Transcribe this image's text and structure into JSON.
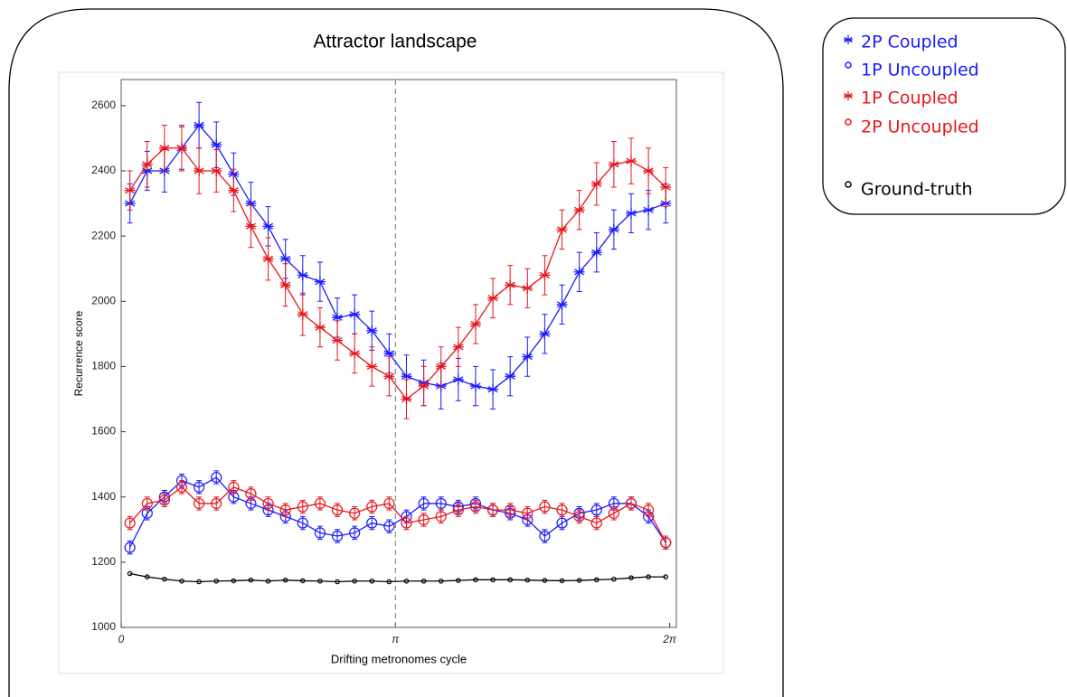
{
  "chart_data": {
    "type": "line",
    "title": "Attractor landscape",
    "xlabel": "Drifting metronomes cycle",
    "ylabel": "Recurrence score",
    "xlim": [
      0,
      6.36
    ],
    "ylim": [
      1000,
      2680
    ],
    "xticks": [
      0,
      {
        "value": 3.1416,
        "label": "π"
      },
      {
        "value": 6.2832,
        "label": "2π"
      }
    ],
    "yticks": [
      1000,
      1200,
      1400,
      1600,
      1800,
      2000,
      2200,
      2400,
      2600
    ],
    "vlines": [
      3.1416
    ],
    "x": [
      0.1,
      0.298,
      0.496,
      0.694,
      0.892,
      1.09,
      1.288,
      1.486,
      1.684,
      1.882,
      2.08,
      2.278,
      2.476,
      2.674,
      2.872,
      3.07,
      3.268,
      3.466,
      3.664,
      3.862,
      4.06,
      4.258,
      4.456,
      4.654,
      4.852,
      5.05,
      5.248,
      5.446,
      5.644,
      5.842,
      6.04,
      6.238
    ],
    "series": [
      {
        "name": "2P Coupled",
        "color": "#1a1aff",
        "marker": "star",
        "values": [
          2300,
          2400,
          2400,
          2470,
          2540,
          2480,
          2390,
          2300,
          2230,
          2130,
          2080,
          2060,
          1950,
          1960,
          1910,
          1840,
          1770,
          1750,
          1740,
          1760,
          1740,
          1730,
          1770,
          1830,
          1900,
          1990,
          2090,
          2150,
          2220,
          2270,
          2280,
          2300
        ],
        "errors": [
          60,
          60,
          65,
          65,
          70,
          70,
          65,
          65,
          60,
          60,
          60,
          60,
          60,
          60,
          60,
          60,
          65,
          70,
          70,
          65,
          60,
          60,
          60,
          60,
          60,
          60,
          60,
          60,
          60,
          60,
          60,
          60
        ]
      },
      {
        "name": "1P Uncoupled",
        "color": "#1a1aff",
        "marker": "circle",
        "values": [
          1245,
          1350,
          1400,
          1450,
          1430,
          1460,
          1400,
          1380,
          1360,
          1340,
          1320,
          1290,
          1280,
          1290,
          1320,
          1310,
          1340,
          1380,
          1380,
          1370,
          1380,
          1360,
          1350,
          1330,
          1280,
          1320,
          1350,
          1360,
          1380,
          1380,
          1340,
          1260
        ],
        "errors": [
          20,
          20,
          20,
          20,
          20,
          20,
          20,
          20,
          20,
          20,
          20,
          20,
          20,
          20,
          20,
          20,
          20,
          20,
          20,
          20,
          20,
          20,
          20,
          20,
          20,
          20,
          20,
          20,
          20,
          20,
          20,
          20
        ]
      },
      {
        "name": "1P Coupled",
        "color": "#e8151b",
        "marker": "star",
        "values": [
          2340,
          2420,
          2470,
          2470,
          2400,
          2400,
          2340,
          2230,
          2130,
          2050,
          1960,
          1920,
          1880,
          1840,
          1800,
          1770,
          1700,
          1740,
          1800,
          1860,
          1930,
          2010,
          2050,
          2040,
          2080,
          2220,
          2280,
          2360,
          2420,
          2430,
          2400,
          2350
        ],
        "errors": [
          60,
          70,
          70,
          70,
          70,
          65,
          65,
          65,
          65,
          65,
          65,
          60,
          60,
          60,
          60,
          60,
          60,
          60,
          60,
          60,
          60,
          60,
          60,
          60,
          60,
          60,
          60,
          65,
          70,
          70,
          70,
          60
        ]
      },
      {
        "name": "2P Uncoupled",
        "color": "#e8151b",
        "marker": "circle",
        "values": [
          1320,
          1380,
          1390,
          1430,
          1380,
          1380,
          1430,
          1410,
          1380,
          1360,
          1370,
          1380,
          1360,
          1350,
          1370,
          1380,
          1320,
          1330,
          1340,
          1360,
          1370,
          1360,
          1360,
          1350,
          1370,
          1360,
          1340,
          1320,
          1350,
          1380,
          1360,
          1260
        ],
        "errors": [
          20,
          20,
          20,
          20,
          20,
          20,
          20,
          20,
          20,
          20,
          20,
          20,
          20,
          20,
          20,
          20,
          20,
          20,
          20,
          20,
          20,
          20,
          20,
          20,
          20,
          20,
          20,
          20,
          20,
          20,
          20,
          20
        ]
      },
      {
        "name": "Ground-truth",
        "color": "#000000",
        "marker": "circle",
        "values": [
          1165,
          1155,
          1148,
          1142,
          1140,
          1142,
          1143,
          1145,
          1142,
          1145,
          1143,
          1142,
          1140,
          1142,
          1142,
          1140,
          1142,
          1142,
          1142,
          1144,
          1146,
          1146,
          1146,
          1145,
          1144,
          1143,
          1144,
          1146,
          1148,
          1152,
          1155,
          1155
        ]
      }
    ]
  }
}
